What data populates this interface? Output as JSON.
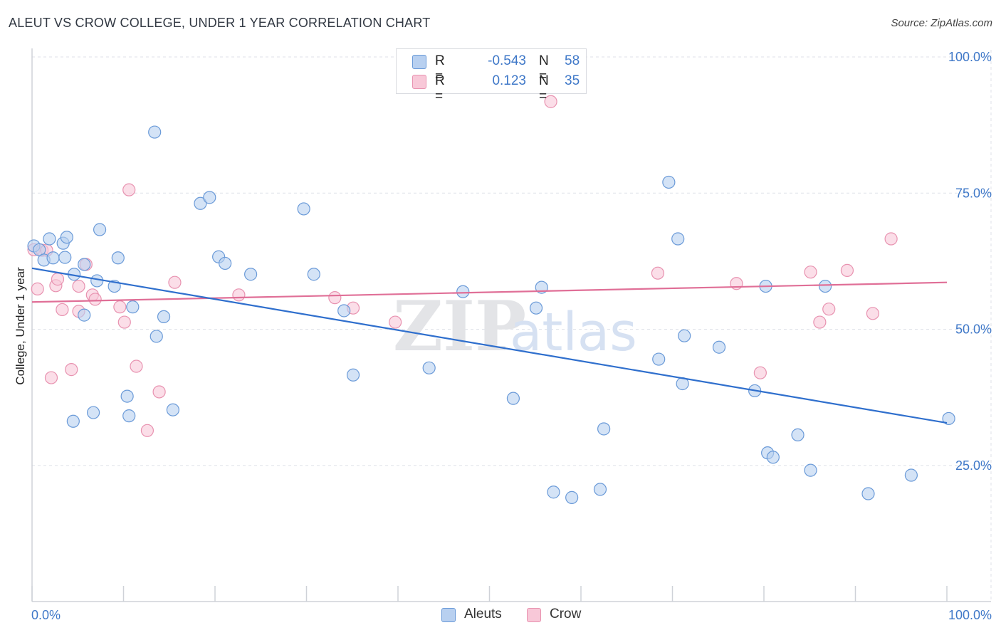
{
  "title": "ALEUT VS CROW COLLEGE, UNDER 1 YEAR CORRELATION CHART",
  "source": "Source: ZipAtlas.com",
  "colors": {
    "blue_fill": "#b8d0f0",
    "blue_stroke": "#6a9ad8",
    "blue_line": "#2f6fcd",
    "pink_fill": "#f8c8d8",
    "pink_stroke": "#e892b0",
    "pink_line": "#e06f97",
    "accent_text": "#3f78c8",
    "grid": "#dfe2e8"
  },
  "legend": {
    "rows": [
      {
        "r_label": "R =",
        "r_value": "-0.543",
        "n_label": "N =",
        "n_value": "58"
      },
      {
        "r_label": "R =",
        "r_value": "0.123",
        "n_label": "N =",
        "n_value": "35"
      }
    ]
  },
  "bottom_legend": [
    "Aleuts",
    "Crow"
  ],
  "watermark": {
    "zip": "ZIP",
    "atlas": "atlas"
  },
  "chart_data": {
    "type": "scatter",
    "title": "ALEUT VS CROW COLLEGE, UNDER 1 YEAR CORRELATION CHART",
    "xlabel": "",
    "ylabel": "College, Under 1 year",
    "xlim": [
      0,
      100
    ],
    "ylim": [
      0,
      100
    ],
    "x_tick_labels": [
      {
        "value": 0,
        "label": "0.0%"
      },
      {
        "value": 100,
        "label": "100.0%"
      }
    ],
    "y_tick_labels": [
      {
        "value": 25,
        "label": "25.0%"
      },
      {
        "value": 50,
        "label": "50.0%"
      },
      {
        "value": 75,
        "label": "75.0%"
      },
      {
        "value": 100,
        "label": "100.0%"
      }
    ],
    "grid": true,
    "legend_position": "top-center",
    "series": [
      {
        "name": "Aleuts",
        "color": "blue",
        "r": -0.543,
        "n": 58,
        "trend": {
          "x": [
            0,
            100
          ],
          "y": [
            61.2,
            32.8
          ]
        },
        "points": [
          [
            0.2,
            65.3
          ],
          [
            0.8,
            64.6
          ],
          [
            1.3,
            62.7
          ],
          [
            1.9,
            66.6
          ],
          [
            2.3,
            63.1
          ],
          [
            3.4,
            65.8
          ],
          [
            3.6,
            63.2
          ],
          [
            3.8,
            66.9
          ],
          [
            4.5,
            33.1
          ],
          [
            4.6,
            60.1
          ],
          [
            5.7,
            61.9
          ],
          [
            5.7,
            52.6
          ],
          [
            7.1,
            58.9
          ],
          [
            7.4,
            68.3
          ],
          [
            6.7,
            34.7
          ],
          [
            9.0,
            57.9
          ],
          [
            9.4,
            63.1
          ],
          [
            10.4,
            37.7
          ],
          [
            10.6,
            34.1
          ],
          [
            11.0,
            54.1
          ],
          [
            13.4,
            86.2
          ],
          [
            13.6,
            48.7
          ],
          [
            14.4,
            52.3
          ],
          [
            15.4,
            35.2
          ],
          [
            18.4,
            73.1
          ],
          [
            19.4,
            74.2
          ],
          [
            20.4,
            63.3
          ],
          [
            21.1,
            62.1
          ],
          [
            23.9,
            60.1
          ],
          [
            29.7,
            72.1
          ],
          [
            30.8,
            60.1
          ],
          [
            34.1,
            53.4
          ],
          [
            35.1,
            41.6
          ],
          [
            43.4,
            42.9
          ],
          [
            47.1,
            56.9
          ],
          [
            52.6,
            37.3
          ],
          [
            55.1,
            53.9
          ],
          [
            55.7,
            57.7
          ],
          [
            57.0,
            20.1
          ],
          [
            59.0,
            19.1
          ],
          [
            62.1,
            20.6
          ],
          [
            62.5,
            31.7
          ],
          [
            68.5,
            44.5
          ],
          [
            69.6,
            77.0
          ],
          [
            70.6,
            66.6
          ],
          [
            71.1,
            40.0
          ],
          [
            71.3,
            48.8
          ],
          [
            75.1,
            46.7
          ],
          [
            79.0,
            38.7
          ],
          [
            80.2,
            57.9
          ],
          [
            80.4,
            27.3
          ],
          [
            81.0,
            26.5
          ],
          [
            83.7,
            30.6
          ],
          [
            85.1,
            24.1
          ],
          [
            86.7,
            57.9
          ],
          [
            91.4,
            19.8
          ],
          [
            96.1,
            23.2
          ],
          [
            100.2,
            33.6
          ]
        ]
      },
      {
        "name": "Crow",
        "color": "pink",
        "r": 0.123,
        "n": 35,
        "trend": {
          "x": [
            0,
            100
          ],
          "y": [
            55.0,
            58.6
          ]
        },
        "points": [
          [
            0.2,
            64.6
          ],
          [
            0.6,
            57.4
          ],
          [
            1.1,
            64.5
          ],
          [
            1.6,
            64.5
          ],
          [
            2.1,
            41.1
          ],
          [
            2.6,
            58.0
          ],
          [
            2.8,
            59.2
          ],
          [
            3.3,
            53.6
          ],
          [
            4.3,
            42.6
          ],
          [
            5.1,
            53.3
          ],
          [
            5.1,
            57.9
          ],
          [
            5.9,
            61.9
          ],
          [
            6.6,
            56.3
          ],
          [
            6.9,
            55.5
          ],
          [
            9.6,
            54.1
          ],
          [
            10.1,
            51.3
          ],
          [
            10.6,
            75.6
          ],
          [
            11.4,
            43.2
          ],
          [
            12.6,
            31.4
          ],
          [
            13.9,
            38.5
          ],
          [
            15.6,
            58.6
          ],
          [
            22.6,
            56.3
          ],
          [
            33.1,
            55.8
          ],
          [
            35.1,
            53.9
          ],
          [
            39.7,
            51.3
          ],
          [
            56.7,
            91.8
          ],
          [
            68.4,
            60.3
          ],
          [
            77.0,
            58.4
          ],
          [
            79.6,
            42.0
          ],
          [
            85.1,
            60.5
          ],
          [
            86.1,
            51.3
          ],
          [
            87.1,
            53.7
          ],
          [
            89.1,
            60.8
          ],
          [
            91.9,
            52.9
          ],
          [
            93.9,
            66.6
          ]
        ]
      }
    ]
  }
}
